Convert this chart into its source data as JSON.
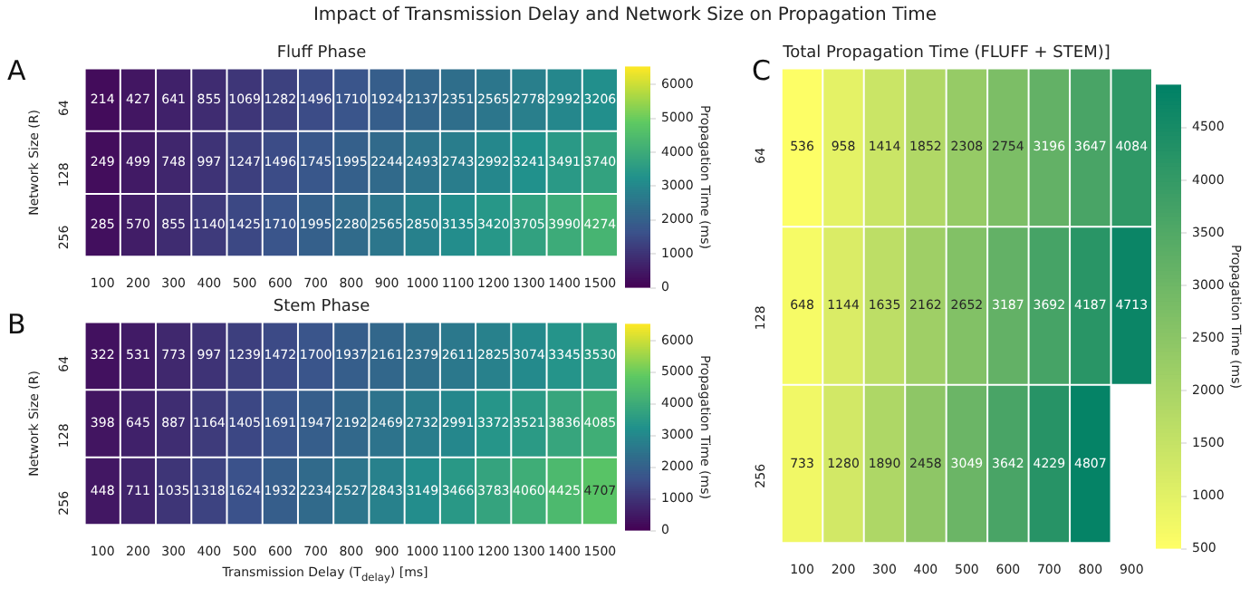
{
  "chart_data": [
    {
      "type": "heatmap",
      "title": "Fluff Phase",
      "ylabel": "Network Size (R)",
      "clabel": "Propagation Time (ms)",
      "annotations": [
        "A",
        "Impact of Transmission Delay and Network Size on Propagation Time"
      ],
      "categories": [
        "100",
        "200",
        "300",
        "400",
        "500",
        "600",
        "700",
        "800",
        "900",
        "1000",
        "1100",
        "1200",
        "1300",
        "1400",
        "1500"
      ],
      "y_categories": [
        "64",
        "128",
        "256"
      ],
      "cells": [
        [
          214,
          427,
          641,
          855,
          1069,
          1282,
          1496,
          1710,
          1924,
          2137,
          2351,
          2565,
          2778,
          2992,
          3206
        ],
        [
          249,
          499,
          748,
          997,
          1247,
          1496,
          1745,
          1995,
          2244,
          2493,
          2743,
          2992,
          3241,
          3491,
          3740
        ],
        [
          285,
          570,
          855,
          1140,
          1425,
          1710,
          1995,
          2280,
          2565,
          2850,
          3135,
          3420,
          3705,
          3990,
          4274
        ]
      ],
      "data_labels": true,
      "colors": [
        "#440154",
        "#3b528b",
        "#21918c",
        "#5ec962",
        "#fde725"
      ],
      "clim": [
        0,
        6500
      ],
      "cticks": [
        0,
        1000,
        2000,
        3000,
        4000,
        5000,
        6000
      ]
    },
    {
      "type": "heatmap",
      "title": "Stem Phase",
      "xlabel": "Transmission Delay (T$_{delay}$) [ms]",
      "ylabel": "Network Size (R)",
      "clabel": "Propagation Time (ms)",
      "annotations": [
        "B"
      ],
      "categories": [
        "100",
        "200",
        "300",
        "400",
        "500",
        "600",
        "700",
        "800",
        "900",
        "1000",
        "1100",
        "1200",
        "1300",
        "1400",
        "1500"
      ],
      "y_categories": [
        "64",
        "128",
        "256"
      ],
      "cells": [
        [
          322,
          531,
          773,
          997,
          1239,
          1472,
          1700,
          1937,
          2161,
          2379,
          2611,
          2825,
          3074,
          3345,
          3530
        ],
        [
          398,
          645,
          887,
          1164,
          1405,
          1691,
          1947,
          2192,
          2469,
          2732,
          2991,
          3372,
          3521,
          3836,
          4085
        ],
        [
          448,
          711,
          1035,
          1318,
          1624,
          1932,
          2234,
          2527,
          2843,
          3149,
          3466,
          3783,
          4060,
          4425,
          4707
        ]
      ],
      "data_labels": true,
      "colors": [
        "#440154",
        "#3b528b",
        "#21918c",
        "#5ec962",
        "#fde725"
      ],
      "clim": [
        0,
        6500
      ],
      "cticks": [
        0,
        1000,
        2000,
        3000,
        4000,
        5000,
        6000
      ]
    },
    {
      "type": "heatmap",
      "title": "Total Propagation Time (FLUFF + STEM)]",
      "clabel": "Propagation Time (ms)",
      "annotations": [
        "C"
      ],
      "categories": [
        "100",
        "200",
        "300",
        "400",
        "500",
        "600",
        "700",
        "800",
        "900"
      ],
      "y_categories": [
        "64",
        "128",
        "256"
      ],
      "cells": [
        [
          536,
          958,
          1414,
          1852,
          2308,
          2754,
          3196,
          3647,
          4084
        ],
        [
          648,
          1144,
          1635,
          2162,
          2652,
          3187,
          3692,
          4187,
          4713
        ],
        [
          733,
          1280,
          1890,
          2458,
          3049,
          3642,
          4229,
          4807,
          null
        ]
      ],
      "data_labels": true,
      "colors": [
        "#ffff66",
        "#008066"
      ],
      "clim": [
        500,
        4900
      ],
      "cticks": [
        500,
        1000,
        1500,
        2000,
        2500,
        3000,
        3500,
        4000,
        4500
      ]
    }
  ]
}
